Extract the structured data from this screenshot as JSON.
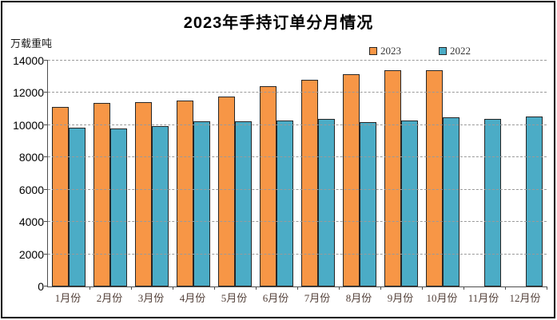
{
  "chart": {
    "title": "2023年手持订单分月情况",
    "unit_label": "万载重吨",
    "legend": [
      {
        "label": "2023",
        "color": "#F79646"
      },
      {
        "label": "2022",
        "color": "#4BACC6"
      }
    ],
    "colors": {
      "series_2023": "#F79646",
      "series_2022": "#4BACC6",
      "bar_border": "#262626",
      "gridline": "#9a9a9a",
      "axis": "#4d4d4d",
      "xlabel_text": "#53413a"
    }
  },
  "chart_data": {
    "type": "bar",
    "title": "2023年手持订单分月情况",
    "xlabel": "",
    "ylabel": "万载重吨",
    "categories": [
      "1月份",
      "2月份",
      "3月份",
      "4月份",
      "5月份",
      "6月份",
      "7月份",
      "8月份",
      "9月份",
      "10月份",
      "11月份",
      "12月份"
    ],
    "series": [
      {
        "name": "2023",
        "color": "#F79646",
        "values": [
          11150,
          11380,
          11450,
          11520,
          11790,
          12400,
          12800,
          13150,
          13390,
          13390,
          null,
          null
        ]
      },
      {
        "name": "2022",
        "color": "#4BACC6",
        "values": [
          9850,
          9800,
          9950,
          10250,
          10230,
          10290,
          10380,
          10210,
          10290,
          10470,
          10390,
          10560
        ]
      }
    ],
    "ylim": [
      0,
      14000
    ],
    "yticks": [
      0,
      2000,
      4000,
      6000,
      8000,
      10000,
      12000,
      14000
    ],
    "grid": true,
    "gridline_style": "dashed",
    "legend_position": "top-right"
  }
}
